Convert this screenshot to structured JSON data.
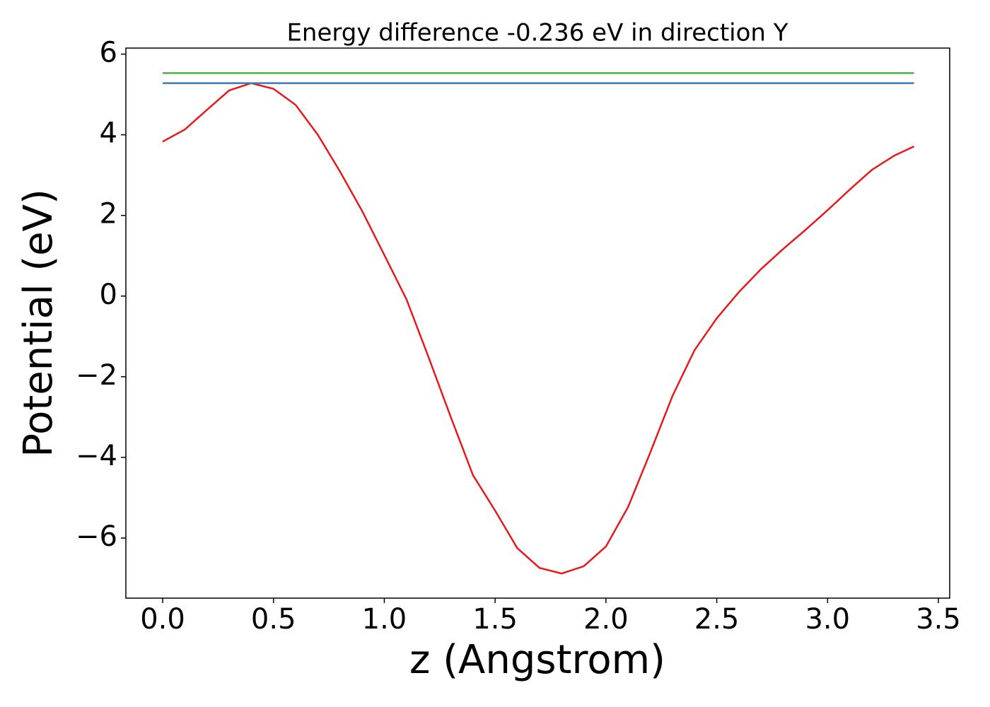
{
  "chart_data": {
    "type": "line",
    "title": "Energy difference -0.236 eV in direction Y",
    "xlabel": "z (Angstrom)",
    "ylabel": "Potential (eV)",
    "series": [
      {
        "color": "#e41a1c",
        "x": [
          0,
          0.1,
          0.2,
          0.3,
          0.4,
          0.5,
          0.6,
          0.7,
          0.8,
          0.9,
          1.0,
          1.1,
          1.2,
          1.3,
          1.4,
          1.5,
          1.6,
          1.7,
          1.8,
          1.9,
          2.0,
          2.1,
          2.2,
          2.3,
          2.4,
          2.5,
          2.6,
          2.7,
          2.8,
          2.9,
          3.0,
          3.1,
          3.2,
          3.3,
          3.39
        ],
        "values": [
          3.83,
          4.13,
          4.62,
          5.1,
          5.28,
          5.14,
          4.74,
          4.0,
          3.09,
          2.11,
          1.02,
          -0.08,
          -1.52,
          -3.0,
          -4.44,
          -5.32,
          -6.25,
          -6.74,
          -6.88,
          -6.7,
          -6.21,
          -5.23,
          -3.88,
          -2.48,
          -1.34,
          -0.55,
          0.1,
          0.67,
          1.17,
          1.64,
          2.13,
          2.64,
          3.13,
          3.48,
          3.71
        ]
      },
      {
        "color": "#377eb8",
        "x": [
          0,
          3.39
        ],
        "values": [
          5.28,
          5.28
        ]
      },
      {
        "color": "#4daf4a",
        "x": [
          0,
          3.39
        ],
        "values": [
          5.53,
          5.53
        ]
      }
    ],
    "xlim": [
      -0.166,
      3.551
    ],
    "ylim": [
      -7.49,
      6.15
    ],
    "xticks": [
      {
        "value": 0,
        "label": "0.0"
      },
      {
        "value": 0.5,
        "label": "0.5"
      },
      {
        "value": 1,
        "label": "1.0"
      },
      {
        "value": 1.5,
        "label": "1.5"
      },
      {
        "value": 2,
        "label": "2.0"
      },
      {
        "value": 2.5,
        "label": "2.5"
      },
      {
        "value": 3,
        "label": "3.0"
      },
      {
        "value": 3.5,
        "label": "3.5"
      }
    ],
    "yticks": [
      {
        "value": -6,
        "label": "−6"
      },
      {
        "value": -4,
        "label": "−4"
      },
      {
        "value": -2,
        "label": "−2"
      },
      0,
      2,
      4,
      6
    ],
    "grid": false
  }
}
